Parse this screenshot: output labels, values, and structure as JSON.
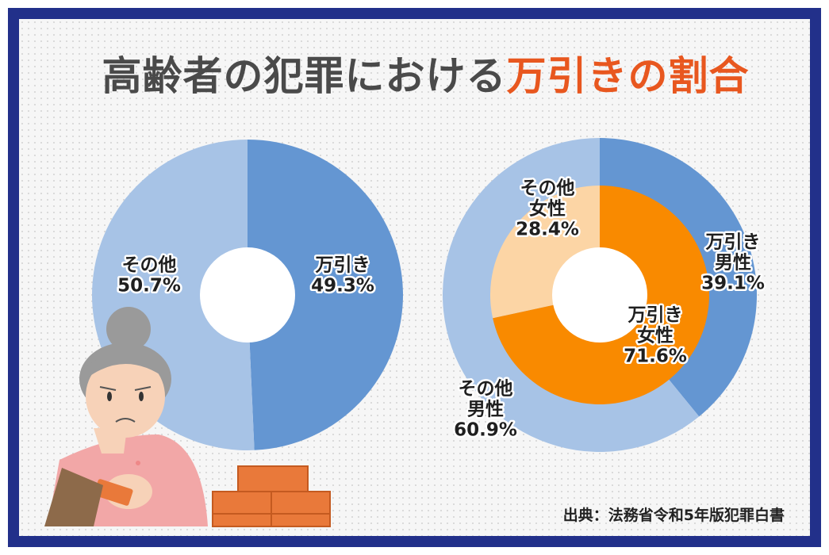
{
  "title": {
    "part1": "高齢者の犯罪における",
    "part2": "万引きの割合"
  },
  "source": "出典：法務省令和5年版犯罪白書",
  "colors": {
    "frame": "#22308a",
    "title_dark": "#4a4a4a",
    "title_accent": "#e8571f",
    "shoplifting": "#6496d2",
    "other": "#a7c3e6",
    "female_shoplifting": "#f98a00",
    "female_other": "#fcd5a5"
  },
  "chart_data": [
    {
      "type": "pie",
      "variant": "donut",
      "slices": [
        {
          "label": "万引き",
          "value": 49.3,
          "value_text": "49.3%"
        },
        {
          "label": "その他",
          "value": 50.7,
          "value_text": "50.7%"
        }
      ]
    },
    {
      "type": "pie",
      "variant": "nested-donut",
      "outer": [
        {
          "label": "万引き",
          "sublabel": "男性",
          "value": 39.1,
          "value_text": "39.1%"
        },
        {
          "label": "その他",
          "sublabel": "男性",
          "value": 60.9,
          "value_text": "60.9%"
        }
      ],
      "inner": [
        {
          "label": "万引き",
          "sublabel": "女性",
          "value": 71.6,
          "value_text": "71.6%"
        },
        {
          "label": "その他",
          "sublabel": "女性",
          "value": 28.4,
          "value_text": "28.4%"
        }
      ]
    }
  ]
}
